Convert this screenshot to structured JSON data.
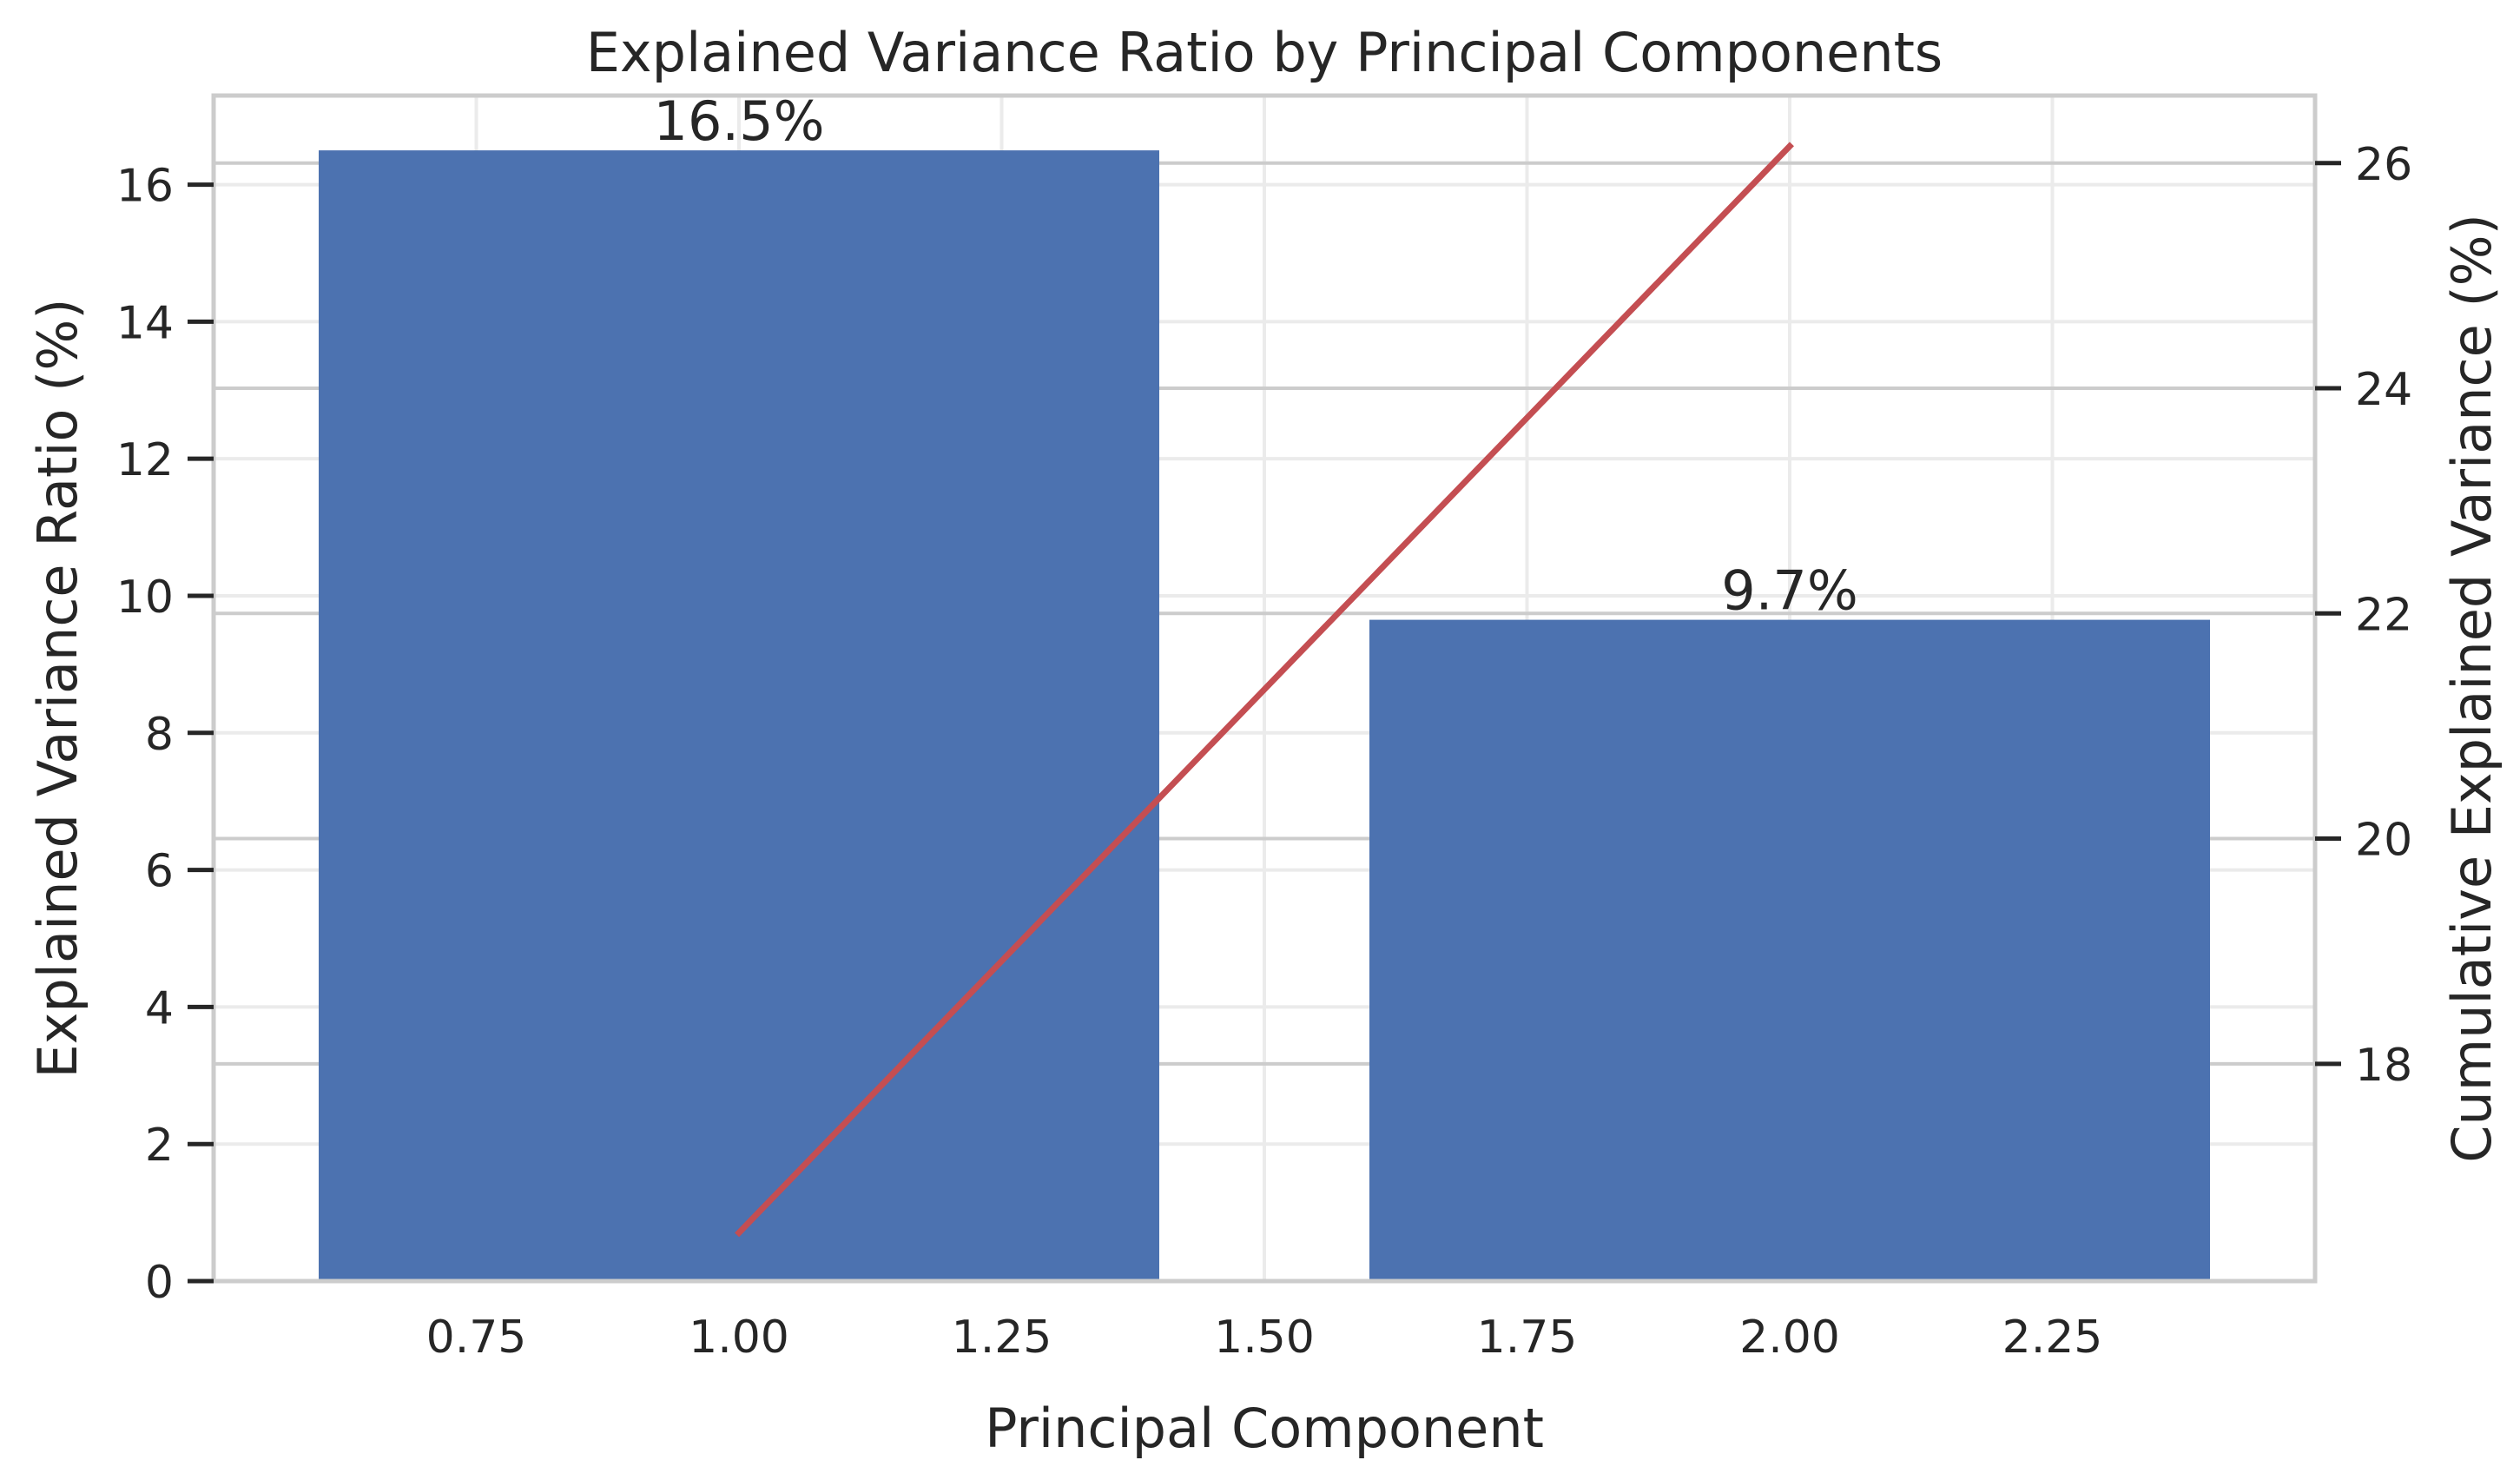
{
  "chart_data": {
    "type": "bar",
    "title": "Explained Variance Ratio by Principal Components",
    "xlabel": "Principal Component",
    "ylabel": "Explained Variance Ratio (%)",
    "y2label": "Cumulative Explained Variance (%)",
    "xlim": [
      0.5,
      2.5
    ],
    "ylim": [
      0,
      17.3
    ],
    "y2lim": [
      16.07,
      26.6
    ],
    "xticks": [
      0.75,
      1.0,
      1.25,
      1.5,
      1.75,
      2.0,
      2.25
    ],
    "xtick_labels": [
      "0.75",
      "1.00",
      "1.25",
      "1.50",
      "1.75",
      "2.00",
      "2.25"
    ],
    "yticks": [
      0,
      2,
      4,
      6,
      8,
      10,
      12,
      14,
      16
    ],
    "ytick_labels": [
      "0",
      "2",
      "4",
      "6",
      "8",
      "10",
      "12",
      "14",
      "16"
    ],
    "y2ticks": [
      18,
      20,
      22,
      24,
      26
    ],
    "y2tick_labels": [
      "18",
      "20",
      "22",
      "24",
      "26"
    ],
    "grid": true,
    "bar_color": "#4c72b0",
    "line_color": "#c44e52",
    "series": [
      {
        "type": "bar",
        "axis": "left",
        "x": [
          1,
          2
        ],
        "values": [
          16.5,
          9.65
        ],
        "labels": [
          "16.5%",
          "9.7%"
        ]
      },
      {
        "type": "line",
        "axis": "right",
        "x": [
          1,
          2
        ],
        "values": [
          16.5,
          26.15
        ]
      }
    ]
  }
}
